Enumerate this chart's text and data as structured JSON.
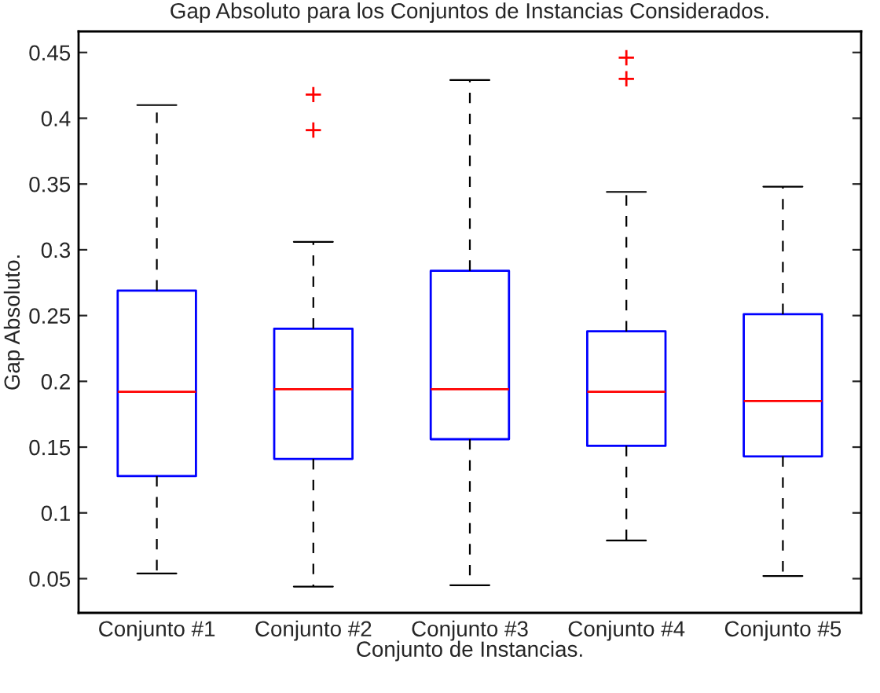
{
  "chart_data": {
    "type": "box",
    "title": "Gap Absoluto para los Conjuntos de Instancias Considerados.",
    "xlabel": "Conjunto de Instancias.",
    "ylabel": "Gap Absoluto.",
    "categories": [
      "Conjunto #1",
      "Conjunto #2",
      "Conjunto #3",
      "Conjunto #4",
      "Conjunto #5"
    ],
    "boxes": [
      {
        "low": 0.054,
        "q1": 0.128,
        "median": 0.192,
        "q3": 0.269,
        "high": 0.41
      },
      {
        "low": 0.044,
        "q1": 0.141,
        "median": 0.194,
        "q3": 0.24,
        "high": 0.306,
        "outliers": [
          0.391,
          0.418
        ]
      },
      {
        "low": 0.045,
        "q1": 0.156,
        "median": 0.194,
        "q3": 0.284,
        "high": 0.429
      },
      {
        "low": 0.079,
        "q1": 0.151,
        "median": 0.192,
        "q3": 0.238,
        "high": 0.344,
        "outliers": [
          0.43,
          0.446
        ]
      },
      {
        "low": 0.052,
        "q1": 0.143,
        "median": 0.185,
        "q3": 0.251,
        "high": 0.348
      }
    ],
    "color": "#0000ff",
    "ylim": [
      0.024,
      0.466
    ],
    "yticks": [
      0.05,
      0.1,
      0.15,
      0.2,
      0.25,
      0.3,
      0.35,
      0.4,
      0.45
    ],
    "grid": false
  }
}
